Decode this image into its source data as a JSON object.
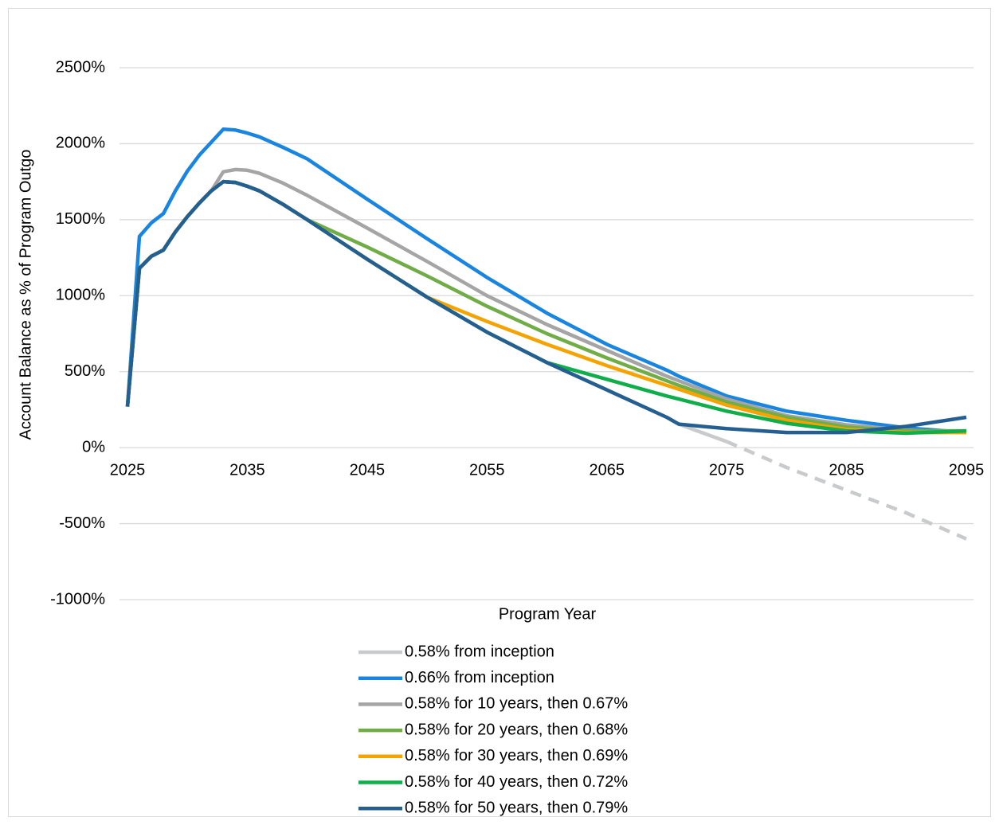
{
  "chart_data": {
    "type": "line",
    "x_label": "Program Year",
    "y_label": "Account Balance as % of Program Outgo",
    "x": [
      2025,
      2026,
      2027,
      2028,
      2029,
      2030,
      2031,
      2032,
      2033,
      2034,
      2035,
      2036,
      2038,
      2040,
      2045,
      2050,
      2055,
      2060,
      2065,
      2070,
      2071,
      2075,
      2080,
      2085,
      2090,
      2095
    ],
    "xlim": [
      2025,
      2095
    ],
    "xticks": [
      2025,
      2035,
      2045,
      2055,
      2065,
      2075,
      2085,
      2095
    ],
    "ylim": [
      -1000,
      2500
    ],
    "yticks": [
      {
        "value": -1000,
        "label": "-1000%"
      },
      {
        "value": -500,
        "label": "-500%"
      },
      {
        "value": 0,
        "label": "0%"
      },
      {
        "value": 500,
        "label": "500%"
      },
      {
        "value": 1000,
        "label": "1000%"
      },
      {
        "value": 1500,
        "label": "1500%"
      },
      {
        "value": 2000,
        "label": "2000%"
      },
      {
        "value": 2500,
        "label": "2500%"
      }
    ],
    "grid": true,
    "legend": "bottom",
    "series": [
      {
        "name": "0.58% from inception",
        "color": "#c9cacb",
        "values": [
          270,
          1180,
          1260,
          1300,
          1420,
          1520,
          1610,
          1690,
          1750,
          1745,
          1720,
          1690,
          1600,
          1500,
          1240,
          990,
          760,
          560,
          380,
          200,
          155,
          40,
          -130,
          -280,
          -430,
          -600
        ]
      },
      {
        "name": "0.66% from inception",
        "color": "#1a85e0",
        "values": [
          270,
          1390,
          1480,
          1540,
          1690,
          1820,
          1925,
          2010,
          2095,
          2090,
          2070,
          2045,
          1975,
          1900,
          1635,
          1375,
          1120,
          885,
          680,
          510,
          470,
          340,
          240,
          180,
          130,
          100
        ]
      },
      {
        "name": "0.58% for 10 years, then 0.67%",
        "color": "#a5a5a5",
        "values": [
          270,
          1180,
          1260,
          1300,
          1420,
          1520,
          1610,
          1690,
          1815,
          1830,
          1825,
          1805,
          1740,
          1660,
          1445,
          1225,
          1000,
          810,
          640,
          470,
          440,
          320,
          210,
          150,
          115,
          100
        ]
      },
      {
        "name": "0.58% for 20 years, then 0.68%",
        "color": "#70ad47",
        "values": [
          270,
          1180,
          1260,
          1300,
          1420,
          1520,
          1610,
          1690,
          1750,
          1745,
          1720,
          1690,
          1600,
          1500,
          1320,
          1130,
          930,
          750,
          590,
          440,
          410,
          300,
          200,
          135,
          110,
          110
        ]
      },
      {
        "name": "0.58% for 30 years, then 0.69%",
        "color": "#f5a300",
        "values": [
          270,
          1180,
          1260,
          1300,
          1420,
          1520,
          1610,
          1690,
          1750,
          1745,
          1720,
          1690,
          1600,
          1500,
          1240,
          990,
          830,
          680,
          540,
          410,
          385,
          280,
          180,
          120,
          100,
          100
        ]
      },
      {
        "name": "0.58% for 40 years, then 0.72%",
        "color": "#0fae4a",
        "values": [
          270,
          1180,
          1260,
          1300,
          1420,
          1520,
          1610,
          1690,
          1750,
          1745,
          1720,
          1690,
          1600,
          1500,
          1240,
          990,
          760,
          560,
          450,
          340,
          320,
          240,
          160,
          110,
          95,
          110
        ]
      },
      {
        "name": "0.58% for 50 years, then 0.79%",
        "color": "#255e91",
        "values": [
          270,
          1180,
          1260,
          1300,
          1420,
          1520,
          1610,
          1690,
          1750,
          1745,
          1720,
          1690,
          1600,
          1500,
          1240,
          990,
          760,
          560,
          380,
          200,
          155,
          125,
          100,
          100,
          140,
          200
        ]
      }
    ]
  }
}
